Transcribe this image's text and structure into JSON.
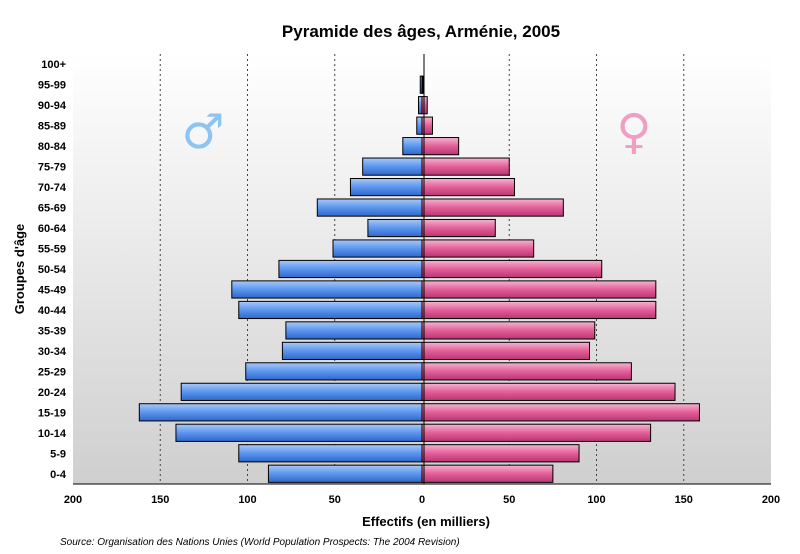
{
  "chart_data": {
    "type": "bar",
    "orientation": "horizontal",
    "layout": "population-pyramid",
    "title": "Pyramide des âges, Arménie, 2005",
    "xlabel": "Effectifs (en milliers)",
    "ylabel": "Groupes d'âge",
    "xlim": [
      -200,
      200
    ],
    "x_ticks": [
      "200",
      "150",
      "100",
      "50",
      "0",
      "50",
      "100",
      "150",
      "200"
    ],
    "grid": "vertical dashed",
    "categories": [
      "0-4",
      "5-9",
      "10-14",
      "15-19",
      "20-24",
      "25-29",
      "30-34",
      "35-39",
      "40-44",
      "45-49",
      "50-54",
      "55-59",
      "60-64",
      "65-69",
      "70-74",
      "75-79",
      "80-84",
      "85-89",
      "90-94",
      "95-99",
      "100+"
    ],
    "series": [
      {
        "side": "left",
        "color": "#5b96ee",
        "symbol": "♂",
        "symbol_color": "#8ec4f2",
        "values": [
          88,
          105,
          141,
          162,
          138,
          101,
          80,
          78,
          105,
          109,
          82,
          51,
          31,
          60,
          41,
          34,
          11,
          3,
          2,
          1,
          0
        ]
      },
      {
        "side": "right",
        "color": "#e35f98",
        "symbol": "♀",
        "symbol_color": "#f09ec4",
        "values": [
          75,
          90,
          131,
          159,
          145,
          120,
          96,
          99,
          134,
          134,
          103,
          64,
          42,
          81,
          53,
          50,
          21,
          6,
          3,
          0.5,
          0
        ]
      }
    ],
    "source": "Source: Organisation des Nations Unies (World Population Prospects: The 2004 Revision)"
  }
}
